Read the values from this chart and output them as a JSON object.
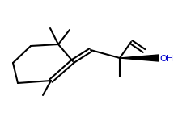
{
  "bg_color": "#ffffff",
  "line_color": "#000000",
  "oh_color": "#0000cc",
  "line_width": 1.5,
  "figsize": [
    2.41,
    1.55
  ],
  "dpi": 100
}
